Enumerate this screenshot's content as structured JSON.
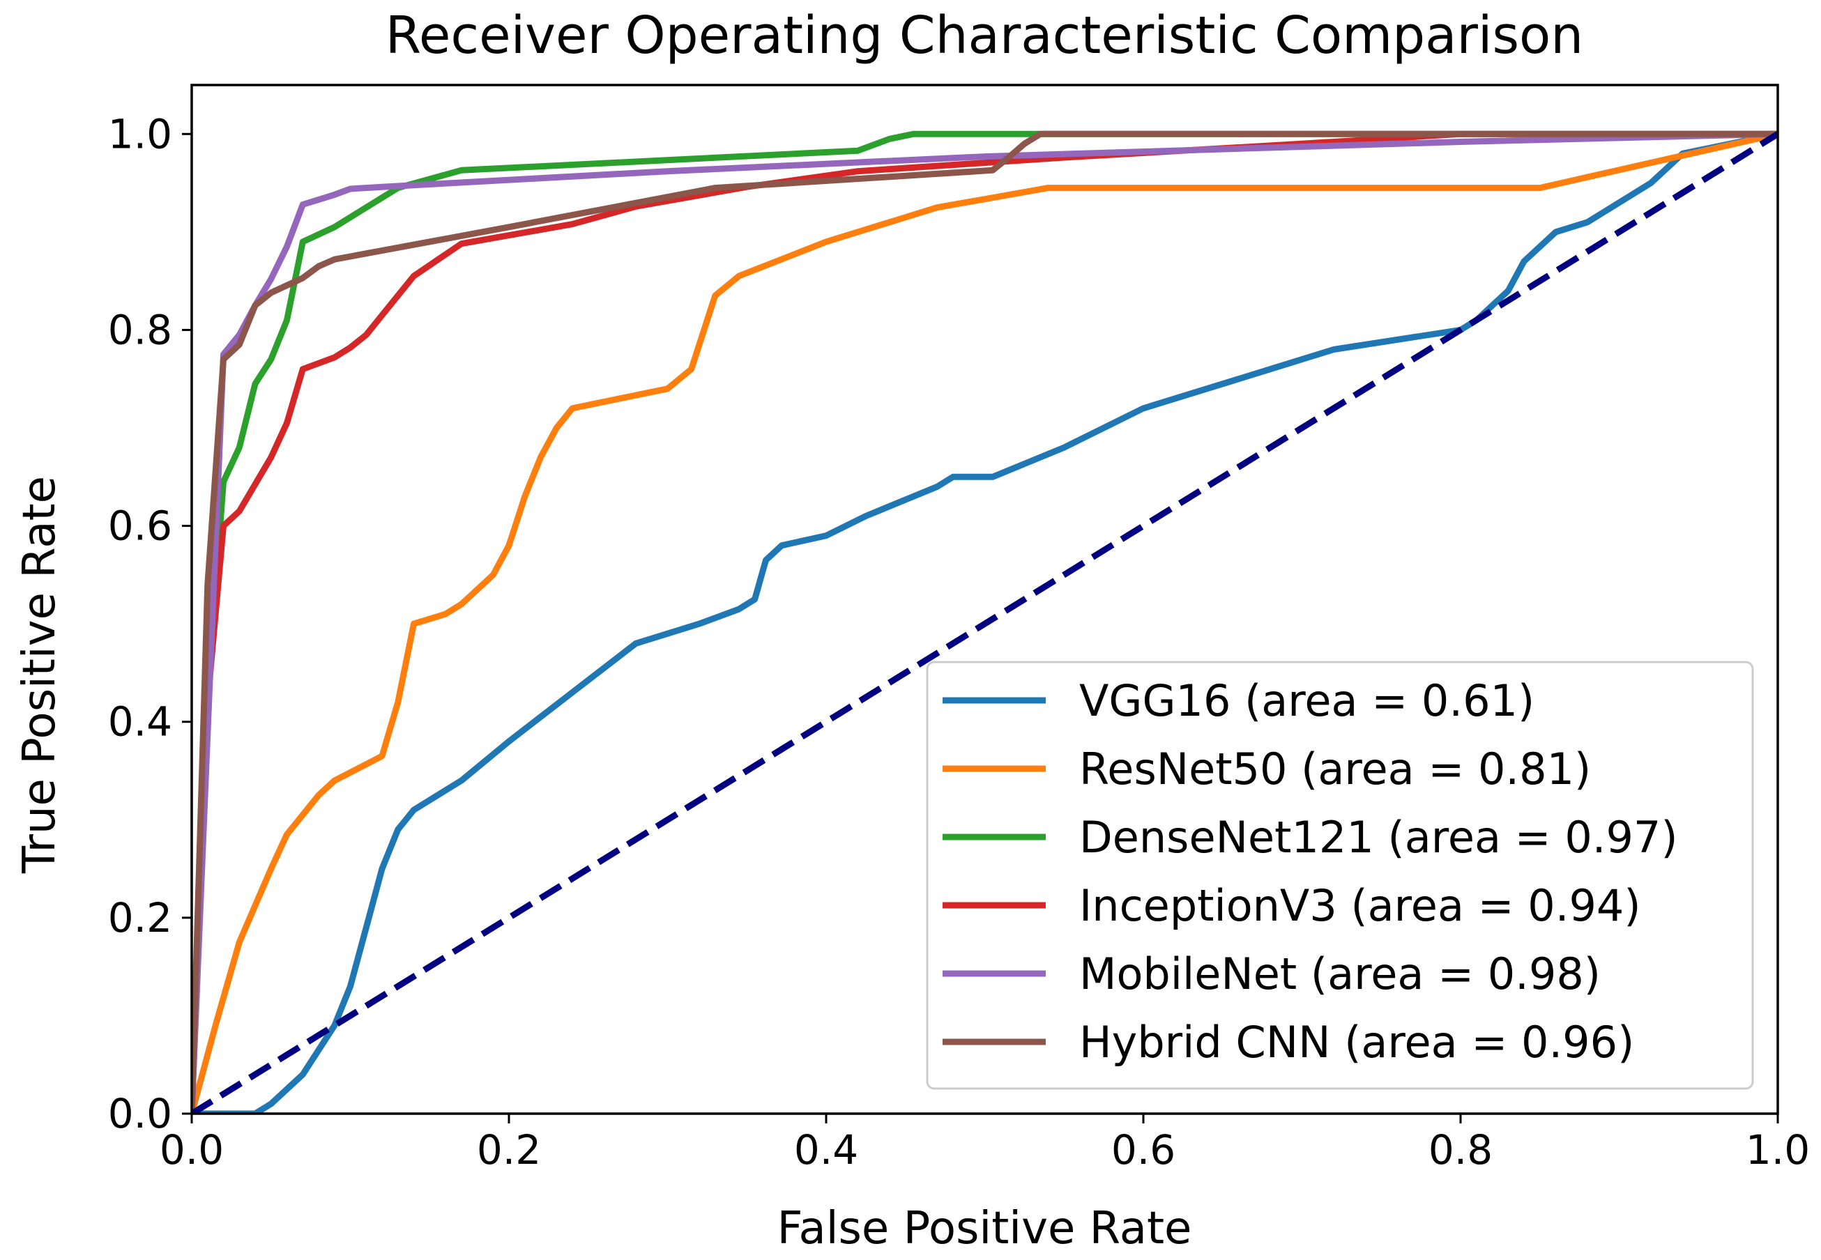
{
  "chart_data": {
    "type": "line",
    "title": "Receiver Operating Characteristic Comparison",
    "xlabel": "False Positive Rate",
    "ylabel": "True Positive Rate",
    "xlim": [
      0.0,
      1.0
    ],
    "ylim": [
      0.0,
      1.05
    ],
    "xticks": [
      "0.0",
      "0.2",
      "0.4",
      "0.6",
      "0.8",
      "1.0"
    ],
    "yticks": [
      "0.0",
      "0.2",
      "0.4",
      "0.6",
      "0.8",
      "1.0"
    ],
    "grid": false,
    "legend_position": "lower-right",
    "baseline": {
      "name": "chance",
      "color": "#000080",
      "style": "dashed",
      "x": [
        0.0,
        1.0
      ],
      "y": [
        0.0,
        1.0
      ]
    },
    "series": [
      {
        "name": "VGG16",
        "label": "VGG16 (area = 0.61)",
        "auc": 0.61,
        "color": "#1f77b4",
        "x": [
          0.0,
          0.04,
          0.05,
          0.07,
          0.09,
          0.1,
          0.11,
          0.12,
          0.13,
          0.14,
          0.16,
          0.17,
          0.2,
          0.24,
          0.28,
          0.32,
          0.345,
          0.355,
          0.362,
          0.372,
          0.4,
          0.425,
          0.47,
          0.48,
          0.505,
          0.55,
          0.6,
          0.68,
          0.72,
          0.8,
          0.81,
          0.83,
          0.84,
          0.86,
          0.88,
          0.92,
          0.94,
          0.97,
          1.0
        ],
        "y": [
          0.0,
          0.0,
          0.01,
          0.04,
          0.09,
          0.13,
          0.19,
          0.25,
          0.29,
          0.31,
          0.33,
          0.34,
          0.38,
          0.43,
          0.48,
          0.5,
          0.515,
          0.525,
          0.565,
          0.58,
          0.59,
          0.61,
          0.64,
          0.65,
          0.65,
          0.68,
          0.72,
          0.76,
          0.78,
          0.8,
          0.81,
          0.84,
          0.87,
          0.9,
          0.91,
          0.95,
          0.98,
          0.99,
          1.0
        ]
      },
      {
        "name": "ResNet50",
        "label": "ResNet50 (area = 0.81)",
        "auc": 0.81,
        "color": "#ff7f0e",
        "x": [
          0.0,
          0.015,
          0.03,
          0.05,
          0.06,
          0.08,
          0.09,
          0.12,
          0.13,
          0.14,
          0.16,
          0.17,
          0.19,
          0.2,
          0.21,
          0.22,
          0.23,
          0.24,
          0.27,
          0.3,
          0.315,
          0.33,
          0.345,
          0.4,
          0.47,
          0.54,
          0.85,
          1.0
        ],
        "y": [
          0.0,
          0.09,
          0.175,
          0.25,
          0.285,
          0.325,
          0.34,
          0.365,
          0.42,
          0.5,
          0.51,
          0.52,
          0.55,
          0.58,
          0.63,
          0.67,
          0.7,
          0.72,
          0.73,
          0.74,
          0.76,
          0.835,
          0.855,
          0.89,
          0.925,
          0.945,
          0.945,
          1.0
        ]
      },
      {
        "name": "DenseNet121",
        "label": "DenseNet121 (area = 0.97)",
        "auc": 0.97,
        "color": "#2ca02c",
        "x": [
          0.0,
          0.01,
          0.02,
          0.03,
          0.04,
          0.05,
          0.06,
          0.07,
          0.09,
          0.11,
          0.13,
          0.17,
          0.42,
          0.44,
          0.455,
          1.0
        ],
        "y": [
          0.0,
          0.43,
          0.645,
          0.68,
          0.745,
          0.77,
          0.81,
          0.89,
          0.905,
          0.925,
          0.945,
          0.963,
          0.983,
          0.995,
          1.0,
          1.0
        ]
      },
      {
        "name": "InceptionV3",
        "label": "InceptionV3 (area = 0.94)",
        "auc": 0.94,
        "color": "#d62728",
        "x": [
          0.0,
          0.01,
          0.02,
          0.03,
          0.05,
          0.06,
          0.07,
          0.09,
          0.1,
          0.11,
          0.12,
          0.14,
          0.17,
          0.24,
          0.28,
          0.35,
          0.42,
          0.55,
          0.7,
          0.8,
          1.0
        ],
        "y": [
          0.0,
          0.42,
          0.6,
          0.615,
          0.67,
          0.705,
          0.76,
          0.772,
          0.782,
          0.795,
          0.815,
          0.855,
          0.888,
          0.908,
          0.926,
          0.946,
          0.962,
          0.976,
          0.99,
          1.0,
          1.0
        ]
      },
      {
        "name": "MobileNet",
        "label": "MobileNet (area = 0.98)",
        "auc": 0.98,
        "color": "#9467bd",
        "x": [
          0.0,
          0.02,
          0.03,
          0.04,
          0.05,
          0.06,
          0.07,
          0.09,
          0.1,
          0.12,
          0.3,
          0.5,
          0.8,
          1.0
        ],
        "y": [
          0.0,
          0.775,
          0.795,
          0.825,
          0.852,
          0.885,
          0.928,
          0.938,
          0.944,
          0.946,
          0.962,
          0.977,
          0.992,
          1.0
        ]
      },
      {
        "name": "Hybrid CNN",
        "label": "Hybrid CNN (area = 0.96)",
        "auc": 0.96,
        "color": "#8c564b",
        "x": [
          0.0,
          0.01,
          0.02,
          0.03,
          0.04,
          0.05,
          0.07,
          0.08,
          0.09,
          0.1,
          0.2,
          0.33,
          0.505,
          0.515,
          0.525,
          0.535,
          1.0
        ],
        "y": [
          0.0,
          0.54,
          0.77,
          0.785,
          0.825,
          0.838,
          0.853,
          0.865,
          0.872,
          0.875,
          0.905,
          0.945,
          0.963,
          0.976,
          0.99,
          1.0,
          1.0
        ]
      }
    ]
  }
}
